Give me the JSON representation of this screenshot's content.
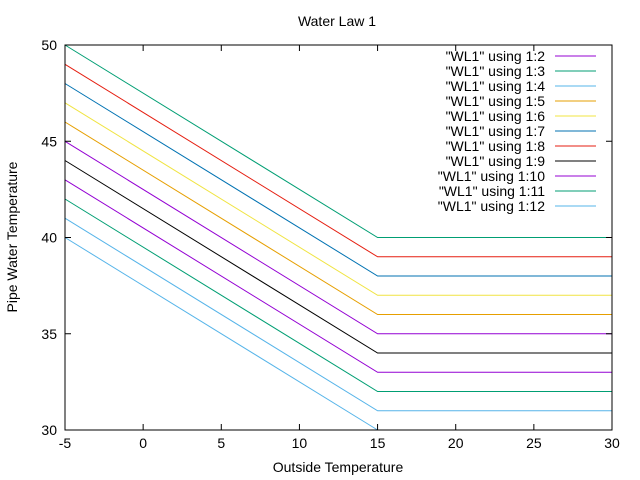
{
  "chart_data": {
    "type": "line",
    "title": "Water Law 1",
    "xlabel": "Outside Temperature",
    "ylabel": "Pipe Water Temperature",
    "xlim": [
      -5,
      30
    ],
    "ylim": [
      30,
      50
    ],
    "xticks": [
      -5,
      0,
      5,
      10,
      15,
      20,
      25,
      30
    ],
    "yticks": [
      30,
      35,
      40,
      45,
      50
    ],
    "grid": false,
    "legend_position": "top-right",
    "x": [
      -5,
      15,
      30
    ],
    "series": [
      {
        "name": "\"WL1\" using 1:2",
        "color": "#9400d3",
        "values": [
          null,
          null,
          null
        ]
      },
      {
        "name": "\"WL1\" using 1:3",
        "color": "#009e73",
        "values": [
          50,
          40,
          40
        ]
      },
      {
        "name": "\"WL1\" using 1:4",
        "color": "#56b4e9",
        "values": [
          null,
          null,
          null
        ]
      },
      {
        "name": "\"WL1\" using 1:5",
        "color": "#e69f00",
        "values": [
          46,
          36,
          36
        ]
      },
      {
        "name": "\"WL1\" using 1:6",
        "color": "#f0e442",
        "values": [
          47,
          37,
          37
        ]
      },
      {
        "name": "\"WL1\" using 1:7",
        "color": "#0072b2",
        "values": [
          48,
          38,
          38
        ]
      },
      {
        "name": "\"WL1\" using 1:8",
        "color": "#e51e10",
        "values": [
          49,
          39,
          39
        ]
      },
      {
        "name": "\"WL1\" using 1:9",
        "color": "#000000",
        "values": [
          44,
          34,
          34
        ]
      },
      {
        "name": "\"WL1\" using 1:10",
        "color": "#9400d3",
        "values": [
          43,
          33,
          33
        ]
      },
      {
        "name": "\"WL1\" using 1:11",
        "color": "#009e73",
        "values": [
          42,
          32,
          32
        ]
      },
      {
        "name": "\"WL1\" using 1:12",
        "color": "#56b4e9",
        "values": [
          41,
          31,
          31
        ]
      },
      {
        "name": "",
        "color": "#9400d3",
        "values": [
          45,
          35,
          35
        ]
      },
      {
        "name": "",
        "color": "#56b4e9",
        "values": [
          40,
          30,
          null
        ]
      }
    ]
  }
}
